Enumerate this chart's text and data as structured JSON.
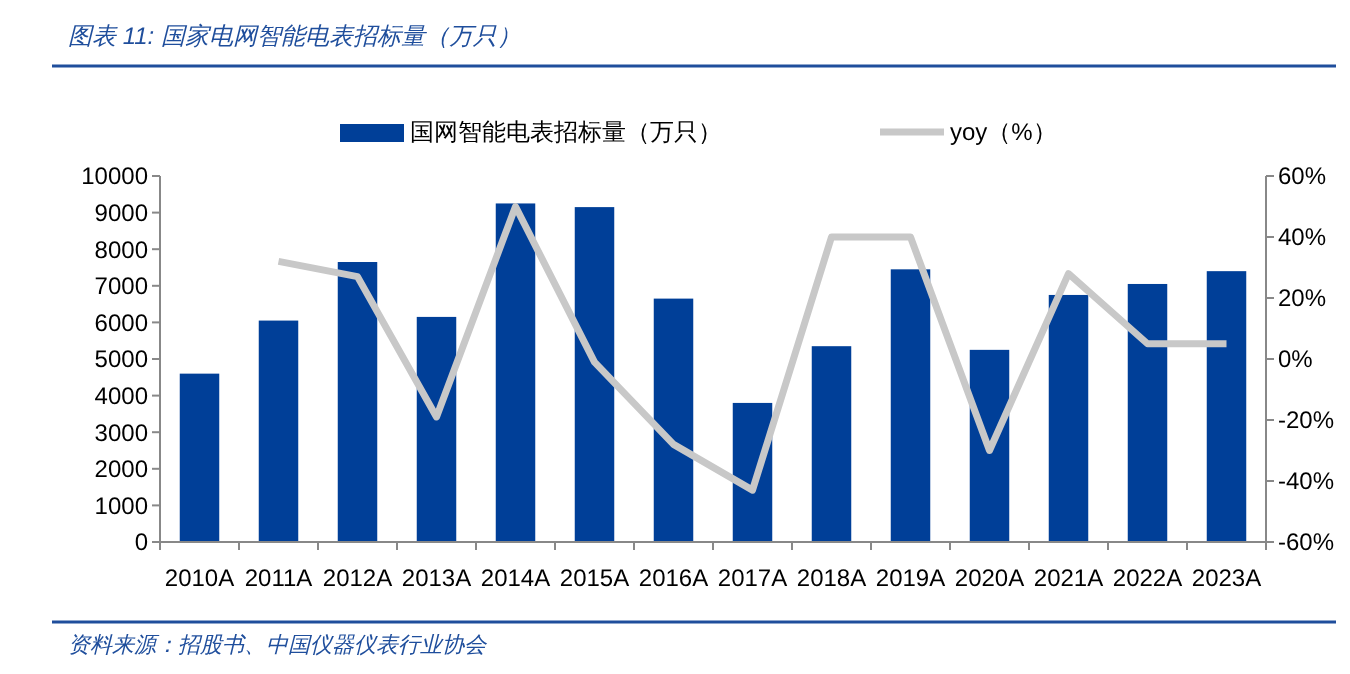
{
  "chart_data": {
    "type": "bar",
    "title": "图表 11:  国家电网智能电表招标量（万只）",
    "annotations": [
      "资料来源：招股书、中国仪器仪表行业协会"
    ],
    "categories": [
      "2010A",
      "2011A",
      "2012A",
      "2013A",
      "2014A",
      "2015A",
      "2016A",
      "2017A",
      "2018A",
      "2019A",
      "2020A",
      "2021A",
      "2022A",
      "2023A"
    ],
    "series": [
      {
        "name": "国网智能电表招标量（万只）",
        "color": "#003f98",
        "values": [
          4600,
          6050,
          7650,
          6150,
          9250,
          9150,
          6650,
          3800,
          5350,
          7450,
          5250,
          6750,
          7050,
          7400
        ]
      },
      {
        "name": "yoy（%）",
        "type": "line",
        "axis": "y2",
        "color": "#c8c8c8",
        "values": [
          null,
          32,
          27,
          -19,
          50,
          -1,
          -28,
          -43,
          40,
          40,
          -30,
          28,
          5,
          5
        ]
      }
    ],
    "ylim": [
      0,
      10000
    ],
    "yticks": [
      0,
      1000,
      2000,
      3000,
      4000,
      5000,
      6000,
      7000,
      8000,
      9000,
      10000
    ],
    "y2lim": [
      -60,
      60
    ],
    "y2ticks": [
      {
        "value": -60,
        "label": "-60%"
      },
      {
        "value": -40,
        "label": "-40%"
      },
      {
        "value": -20,
        "label": "-20%"
      },
      {
        "value": 0,
        "label": "0%"
      },
      {
        "value": 20,
        "label": "20%"
      },
      {
        "value": 40,
        "label": "40%"
      },
      {
        "value": 60,
        "label": "60%"
      }
    ],
    "grid": false,
    "legend": "top"
  }
}
